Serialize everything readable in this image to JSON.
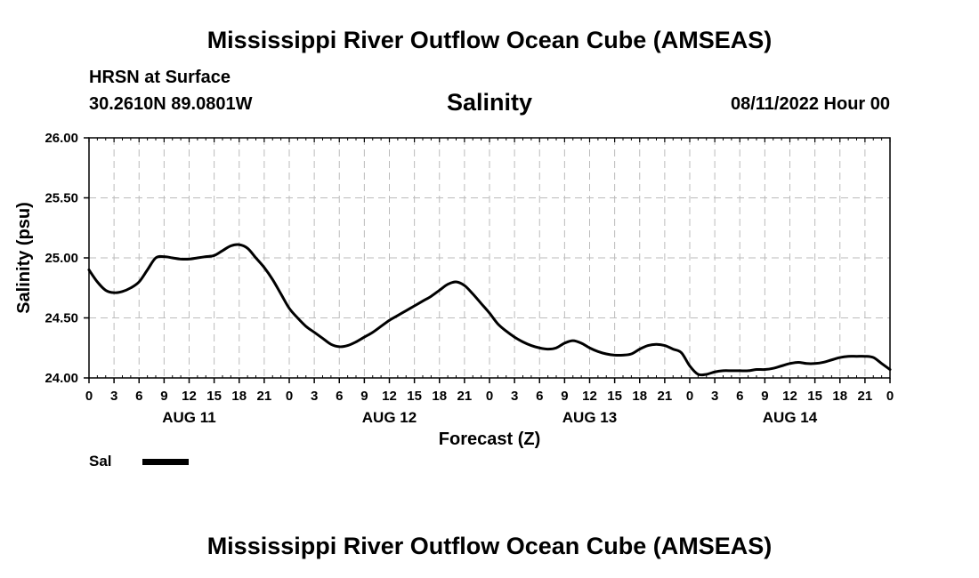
{
  "title": "Mississippi River Outflow Ocean Cube (AMSEAS)",
  "footer_title": "Mississippi River Outflow Ocean Cube (AMSEAS)",
  "location": {
    "station": "HRSN at Surface",
    "coords": "30.2610N  89.0801W"
  },
  "date_label": "08/11/2022 Hour 00",
  "chart_data": {
    "type": "line",
    "title": "Salinity",
    "xlabel": "Forecast (Z)",
    "ylabel": "Salinity (psu)",
    "xlim": [
      0,
      96
    ],
    "ylim": [
      24.0,
      26.0
    ],
    "yticks": [
      "24.00",
      "24.50",
      "25.00",
      "25.50",
      "26.00"
    ],
    "ytick_values": [
      24.0,
      24.5,
      25.0,
      25.5,
      26.0
    ],
    "xticks": [
      {
        "h": 0,
        "label": "0"
      },
      {
        "h": 3,
        "label": "3"
      },
      {
        "h": 6,
        "label": "6"
      },
      {
        "h": 9,
        "label": "9"
      },
      {
        "h": 12,
        "label": "12"
      },
      {
        "h": 15,
        "label": "15"
      },
      {
        "h": 18,
        "label": "18"
      },
      {
        "h": 21,
        "label": "21"
      },
      {
        "h": 24,
        "label": "0"
      },
      {
        "h": 27,
        "label": "3"
      },
      {
        "h": 30,
        "label": "6"
      },
      {
        "h": 33,
        "label": "9"
      },
      {
        "h": 36,
        "label": "12"
      },
      {
        "h": 39,
        "label": "15"
      },
      {
        "h": 42,
        "label": "18"
      },
      {
        "h": 45,
        "label": "21"
      },
      {
        "h": 48,
        "label": "0"
      },
      {
        "h": 51,
        "label": "3"
      },
      {
        "h": 54,
        "label": "6"
      },
      {
        "h": 57,
        "label": "9"
      },
      {
        "h": 60,
        "label": "12"
      },
      {
        "h": 63,
        "label": "15"
      },
      {
        "h": 66,
        "label": "18"
      },
      {
        "h": 69,
        "label": "21"
      },
      {
        "h": 72,
        "label": "0"
      },
      {
        "h": 75,
        "label": "3"
      },
      {
        "h": 78,
        "label": "6"
      },
      {
        "h": 81,
        "label": "9"
      },
      {
        "h": 84,
        "label": "12"
      },
      {
        "h": 87,
        "label": "15"
      },
      {
        "h": 90,
        "label": "18"
      },
      {
        "h": 93,
        "label": "21"
      },
      {
        "h": 96,
        "label": "0"
      }
    ],
    "day_labels": [
      {
        "h": 12,
        "label": "AUG 11"
      },
      {
        "h": 36,
        "label": "AUG 12"
      },
      {
        "h": 60,
        "label": "AUG 13"
      },
      {
        "h": 84,
        "label": "AUG 14"
      }
    ],
    "grid": true,
    "series": [
      {
        "name": "Sal",
        "x": [
          0,
          1,
          2,
          3,
          4,
          5,
          6,
          7,
          8,
          9,
          10,
          11,
          12,
          13,
          14,
          15,
          16,
          17,
          18,
          19,
          20,
          21,
          22,
          23,
          24,
          25,
          26,
          27,
          28,
          29,
          30,
          31,
          32,
          33,
          34,
          35,
          36,
          37,
          38,
          39,
          40,
          41,
          42,
          43,
          44,
          45,
          46,
          47,
          48,
          49,
          50,
          51,
          52,
          53,
          54,
          55,
          56,
          57,
          58,
          59,
          60,
          61,
          62,
          63,
          64,
          65,
          66,
          67,
          68,
          69,
          70,
          71,
          72,
          73,
          74,
          75,
          76,
          77,
          78,
          79,
          80,
          81,
          82,
          83,
          84,
          85,
          86,
          87,
          88,
          89,
          90,
          91,
          92,
          93,
          94,
          95,
          96
        ],
        "values": [
          24.9,
          24.8,
          24.73,
          24.71,
          24.72,
          24.75,
          24.8,
          24.9,
          25.0,
          25.01,
          25.0,
          24.99,
          24.99,
          25.0,
          25.01,
          25.02,
          25.06,
          25.1,
          25.11,
          25.08,
          25.0,
          24.92,
          24.82,
          24.7,
          24.58,
          24.5,
          24.43,
          24.38,
          24.33,
          24.28,
          24.26,
          24.27,
          24.3,
          24.34,
          24.38,
          24.43,
          24.48,
          24.52,
          24.56,
          24.6,
          24.64,
          24.68,
          24.73,
          24.78,
          24.8,
          24.77,
          24.7,
          24.62,
          24.54,
          24.45,
          24.39,
          24.34,
          24.3,
          24.27,
          24.25,
          24.24,
          24.25,
          24.29,
          24.31,
          24.29,
          24.25,
          24.22,
          24.2,
          24.19,
          24.19,
          24.2,
          24.24,
          24.27,
          24.28,
          24.27,
          24.24,
          24.21,
          24.1,
          24.03,
          24.03,
          24.05,
          24.06,
          24.06,
          24.06,
          24.06,
          24.07,
          24.07,
          24.08,
          24.1,
          24.12,
          24.13,
          24.12,
          24.12,
          24.13,
          24.15,
          24.17,
          24.18,
          24.18,
          24.18,
          24.17,
          24.12,
          24.07
        ]
      }
    ]
  },
  "legend": {
    "label": "Sal",
    "color": "#000000"
  }
}
